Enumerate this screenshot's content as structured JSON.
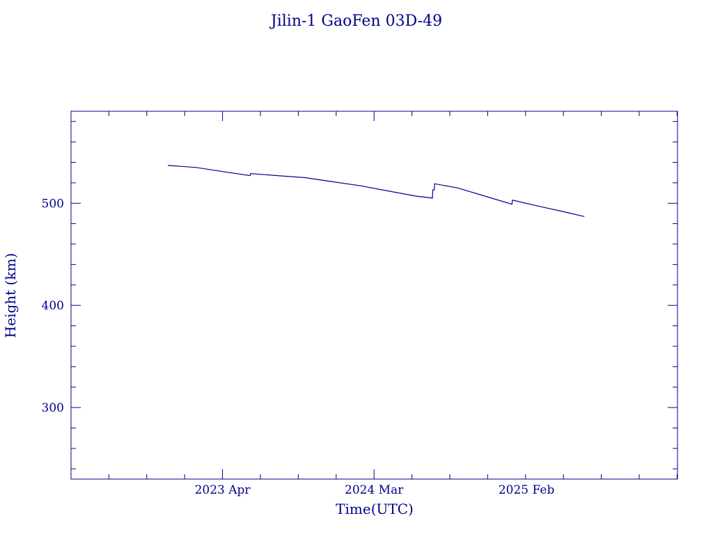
{
  "chart_data": {
    "type": "line",
    "title": "Jilin-1 GaoFen 03D-49",
    "xlabel": "Time(UTC)",
    "ylabel": "Height (km)",
    "color": "#00008b",
    "x_ticks": [
      {
        "label": "2023 Apr",
        "date": "2023-04-01"
      },
      {
        "label": "2024 Mar",
        "date": "2024-03-01"
      },
      {
        "label": "2025 Feb",
        "date": "2025-02-01"
      }
    ],
    "xlim": [
      "2022-05-01",
      "2026-01-01"
    ],
    "ylim": [
      230,
      590
    ],
    "y_ticks": [
      300,
      400,
      500
    ],
    "series": [
      {
        "x": [
          "2022-12-01",
          "2023-02-01",
          "2023-04-01",
          "2023-06-01",
          "2023-06-02",
          "2023-08-01",
          "2023-10-01",
          "2023-12-01",
          "2024-02-01",
          "2024-04-01",
          "2024-06-01",
          "2024-07-08",
          "2024-07-09",
          "2024-07-12",
          "2024-07-13",
          "2024-09-01",
          "2024-11-01",
          "2024-12-31",
          "2025-01-01",
          "2025-03-01",
          "2025-05-01",
          "2025-06-09"
        ],
        "y": [
          537,
          535,
          531,
          527,
          529,
          527,
          525,
          521,
          517,
          512,
          507,
          505,
          513,
          513,
          519,
          515,
          507,
          499,
          503,
          497,
          491,
          487
        ]
      }
    ]
  }
}
